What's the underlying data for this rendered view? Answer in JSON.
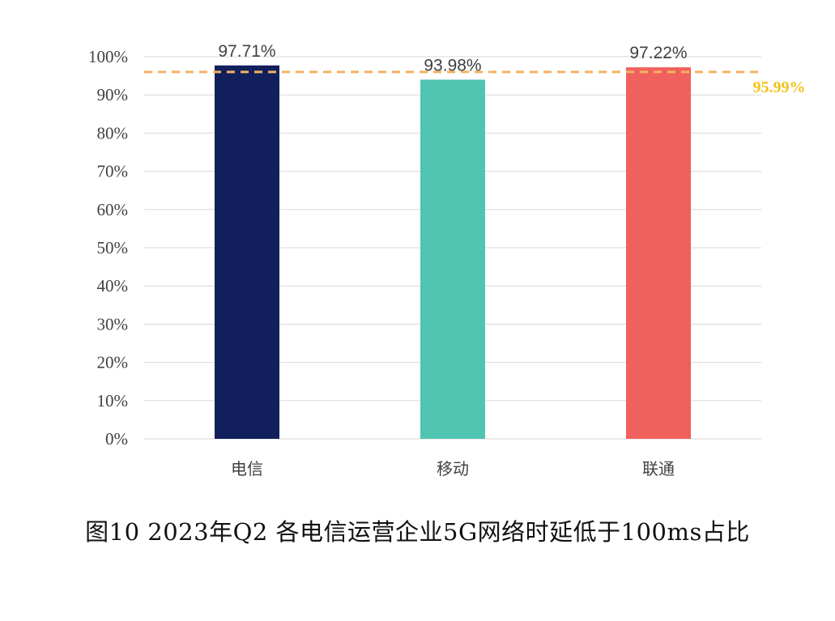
{
  "caption": "图10 2023年Q2 各电信运营企业5G网络时延低于100ms占比",
  "colors": {
    "bars": [
      "#111f5c",
      "#4ec4b1",
      "#f0615d"
    ],
    "reference_line": "#f2b262",
    "reference_label": "#f3c21a",
    "grid": "#d9d9d9",
    "text": "#404040"
  },
  "chart_data": {
    "type": "bar",
    "title": "",
    "xlabel": "",
    "ylabel": "",
    "categories": [
      "电信",
      "移动",
      "联通"
    ],
    "values": [
      97.71,
      93.98,
      97.22
    ],
    "value_labels": [
      "97.71%",
      "93.98%",
      "97.22%"
    ],
    "ylim": [
      0,
      100
    ],
    "yticks": [
      0,
      10,
      20,
      30,
      40,
      50,
      60,
      70,
      80,
      90,
      100
    ],
    "ytick_labels": [
      "0%",
      "10%",
      "20%",
      "30%",
      "40%",
      "50%",
      "60%",
      "70%",
      "80%",
      "90%",
      "100%"
    ],
    "grid": true,
    "reference_line": {
      "value": 95.99,
      "label": "95.99%",
      "style": "dashed"
    }
  }
}
